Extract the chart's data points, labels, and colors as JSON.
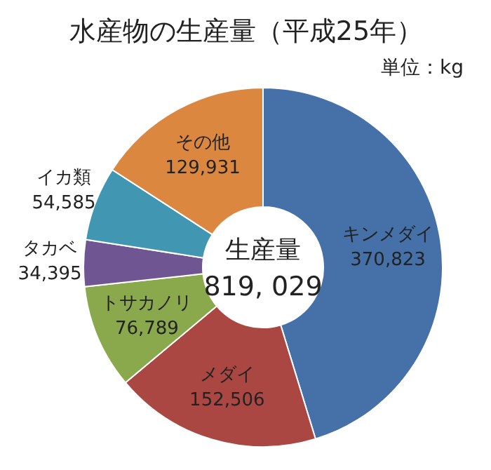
{
  "chart_data": {
    "type": "donut",
    "title": "水産物の生産量（平成25年）",
    "subtitle": "単位：kg",
    "categories": [
      "キンメダイ",
      "メダイ",
      "トサカノリ",
      "タカベ",
      "イカ類",
      "その他"
    ],
    "values": [
      370823,
      152506,
      76789,
      34395,
      54585,
      129931
    ],
    "colors": [
      "#4571a8",
      "#aa4743",
      "#8aa84c",
      "#6f5591",
      "#4197b2",
      "#db8740"
    ],
    "value_labels": [
      "370,823",
      "152,506",
      "76,789",
      "34,395",
      "54,585",
      "129,931"
    ],
    "annotations": [
      "生産量",
      "819, 029"
    ]
  }
}
